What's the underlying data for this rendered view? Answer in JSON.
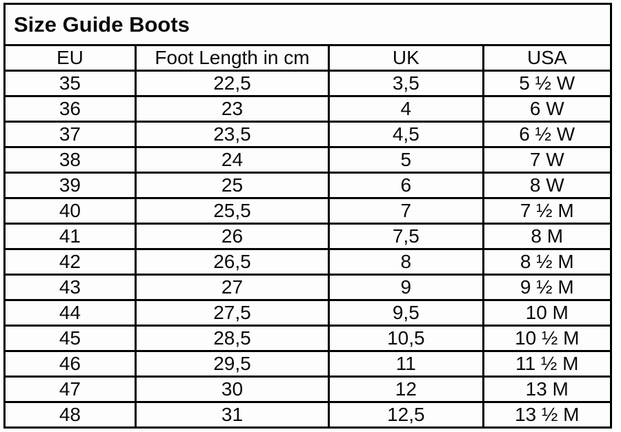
{
  "title": "Size Guide Boots",
  "colors": {
    "border": "#000000",
    "text": "#0a0a0a",
    "background": "#ffffff"
  },
  "chart_data": {
    "type": "table",
    "title": "Size Guide Boots",
    "columns": [
      "EU",
      "Foot Length in cm",
      "UK",
      "USA"
    ],
    "rows": [
      [
        "35",
        "22,5",
        "3,5",
        "5 ½ W"
      ],
      [
        "36",
        "23",
        "4",
        "6 W"
      ],
      [
        "37",
        "23,5",
        "4,5",
        "6 ½ W"
      ],
      [
        "38",
        "24",
        "5",
        "7 W"
      ],
      [
        "39",
        "25",
        "6",
        "8 W"
      ],
      [
        "40",
        "25,5",
        "7",
        "7 ½ M"
      ],
      [
        "41",
        "26",
        "7,5",
        "8 M"
      ],
      [
        "42",
        "26,5",
        "8",
        "8 ½ M"
      ],
      [
        "43",
        "27",
        "9",
        "9 ½ M"
      ],
      [
        "44",
        "27,5",
        "9,5",
        "10 M"
      ],
      [
        "45",
        "28,5",
        "10,5",
        "10 ½ M"
      ],
      [
        "46",
        "29,5",
        "11",
        "11 ½ M"
      ],
      [
        "47",
        "30",
        "12",
        "13 M"
      ],
      [
        "48",
        "31",
        "12,5",
        "13 ½ M"
      ]
    ]
  }
}
